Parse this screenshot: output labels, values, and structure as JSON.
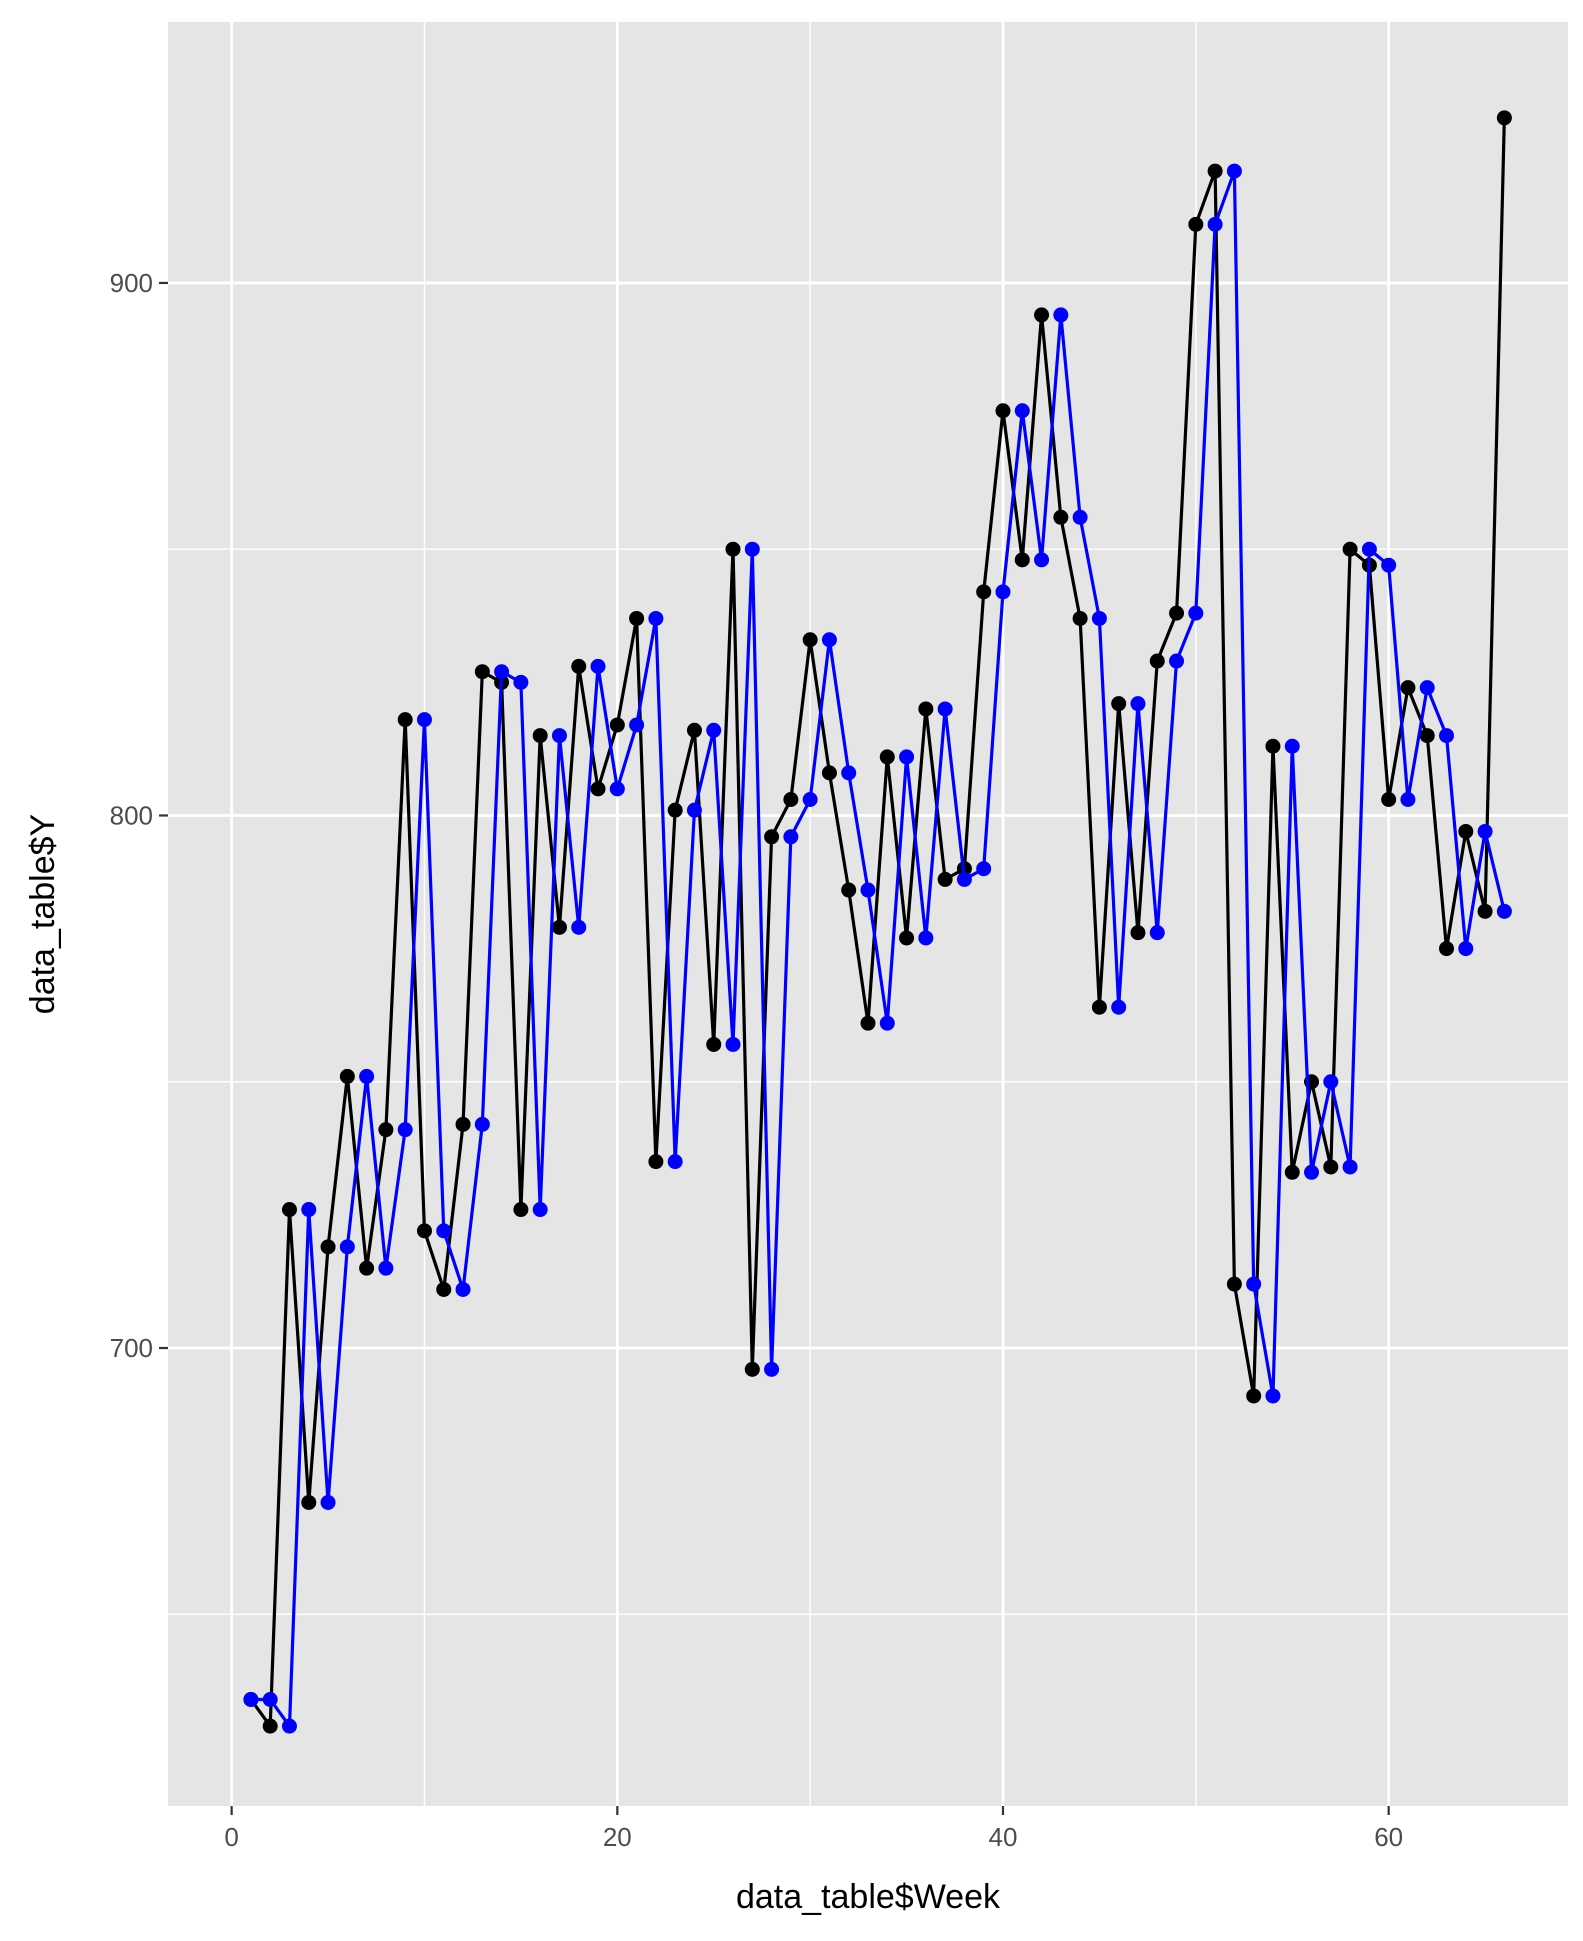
{
  "chart_data": {
    "type": "line",
    "xlabel": "data_table$Week",
    "ylabel": "data_table$Y",
    "xlim": [
      -3.3,
      69.3
    ],
    "ylim": [
      614,
      949
    ],
    "x_ticks": [
      0,
      20,
      40,
      60
    ],
    "x_tick_labels": [
      "0",
      "20",
      "40",
      "60"
    ],
    "y_ticks": [
      700,
      800,
      900
    ],
    "y_tick_labels": [
      "700",
      "800",
      "900"
    ],
    "grid": true,
    "legend": "none",
    "colors": {
      "panel": "#e5e5e5",
      "grid": "#ffffff",
      "original": "#000000",
      "lagged": "#0000ff"
    },
    "series": [
      {
        "color": "#000000",
        "x": [
          1,
          2,
          3,
          4,
          5,
          6,
          7,
          8,
          9,
          10,
          11,
          12,
          13,
          14,
          15,
          16,
          17,
          18,
          19,
          20,
          21,
          22,
          23,
          24,
          25,
          26,
          27,
          28,
          29,
          30,
          31,
          32,
          33,
          34,
          35,
          36,
          37,
          38,
          39,
          40,
          41,
          42,
          43,
          44,
          45,
          46,
          47,
          48,
          49,
          50,
          51,
          52,
          53,
          54,
          55,
          56,
          57,
          58,
          59,
          60,
          61,
          62,
          63,
          64,
          65,
          66
        ],
        "y": [
          634,
          629,
          726,
          671,
          719,
          751,
          715,
          741,
          818,
          722,
          711,
          742,
          827,
          825,
          726,
          815,
          779,
          828,
          805,
          817,
          837,
          735,
          801,
          816,
          757,
          850,
          696,
          796,
          803,
          833,
          808,
          786,
          761,
          811,
          777,
          820,
          788,
          790,
          842,
          876,
          848,
          894,
          856,
          837,
          764,
          821,
          778,
          829,
          838,
          911,
          921,
          712,
          691,
          813,
          733,
          750,
          734,
          850,
          847,
          803,
          824,
          815,
          775,
          797,
          782,
          931
        ]
      },
      {
        "color": "#0000ff",
        "x": [
          1,
          2,
          3,
          4,
          5,
          6,
          7,
          8,
          9,
          10,
          11,
          12,
          13,
          14,
          15,
          16,
          17,
          18,
          19,
          20,
          21,
          22,
          23,
          24,
          25,
          26,
          27,
          28,
          29,
          30,
          31,
          32,
          33,
          34,
          35,
          36,
          37,
          38,
          39,
          40,
          41,
          42,
          43,
          44,
          45,
          46,
          47,
          48,
          49,
          50,
          51,
          52,
          53,
          54,
          55,
          56,
          57,
          58,
          59,
          60,
          61,
          62,
          63,
          64,
          65,
          66
        ],
        "y": [
          634,
          634,
          629,
          726,
          671,
          719,
          751,
          715,
          741,
          818,
          722,
          711,
          742,
          827,
          825,
          726,
          815,
          779,
          828,
          805,
          817,
          837,
          735,
          801,
          816,
          757,
          850,
          696,
          796,
          803,
          833,
          808,
          786,
          761,
          811,
          777,
          820,
          788,
          790,
          842,
          876,
          848,
          894,
          856,
          837,
          764,
          821,
          778,
          829,
          838,
          911,
          921,
          712,
          691,
          813,
          733,
          750,
          734,
          850,
          847,
          803,
          824,
          815,
          775,
          797,
          782
        ]
      }
    ]
  }
}
